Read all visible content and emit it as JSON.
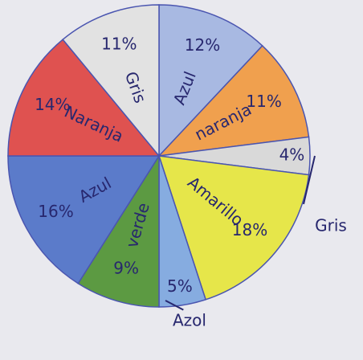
{
  "chart_data": {
    "type": "pie",
    "categories": [
      "Azul",
      "naranja",
      "Gris",
      "Amarillo",
      "Azol",
      "verde",
      "Azul",
      "Naranja",
      "Gris"
    ],
    "values": [
      12,
      11,
      4,
      18,
      5,
      9,
      16,
      14,
      11
    ],
    "value_labels": [
      "12%",
      "11%",
      "4%",
      "18%",
      "5%",
      "9%",
      "16%",
      "14%",
      "11%"
    ],
    "colors": [
      "#a8b9e2",
      "#f0a04e",
      "#d9d9d9",
      "#e6e64a",
      "#86ace0",
      "#5c9a42",
      "#5b7bca",
      "#df5250",
      "#e2e2e2"
    ]
  }
}
